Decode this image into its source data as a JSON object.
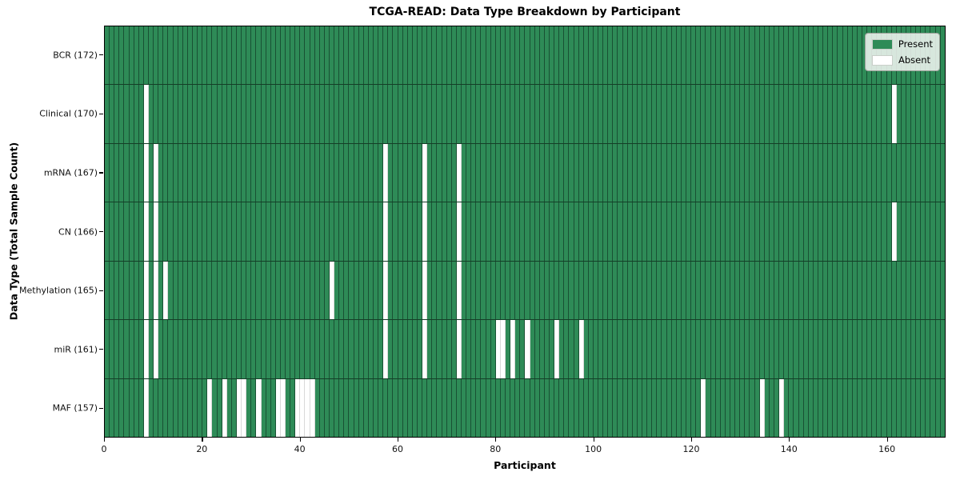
{
  "chart_data": {
    "type": "heatmap",
    "title": "TCGA-READ: Data Type Breakdown by Participant",
    "xlabel": "Participant",
    "ylabel": "Data Type (Total Sample Count)",
    "n_participants": 172,
    "x_ticks": [
      0,
      20,
      40,
      60,
      80,
      100,
      120,
      140,
      160
    ],
    "grid": true,
    "colors": {
      "present": "#2e8b57",
      "absent": "#ffffff"
    },
    "legend": {
      "position": "upper right",
      "entries": [
        {
          "label": "Present",
          "color": "#2e8b57"
        },
        {
          "label": "Absent",
          "color": "#ffffff"
        }
      ]
    },
    "rows": [
      {
        "data_type": "BCR",
        "count": 172,
        "label": "BCR (172)",
        "absent_participants": []
      },
      {
        "data_type": "Clinical",
        "count": 170,
        "label": "Clinical (170)",
        "absent_participants": [
          8,
          161
        ]
      },
      {
        "data_type": "mRNA",
        "count": 167,
        "label": "mRNA (167)",
        "absent_participants": [
          8,
          10,
          57,
          65,
          72
        ]
      },
      {
        "data_type": "CN",
        "count": 166,
        "label": "CN (166)",
        "absent_participants": [
          8,
          10,
          57,
          65,
          72,
          161
        ]
      },
      {
        "data_type": "Methylation",
        "count": 165,
        "label": "Methylation (165)",
        "absent_participants": [
          8,
          10,
          12,
          46,
          57,
          65,
          72
        ]
      },
      {
        "data_type": "miR",
        "count": 161,
        "label": "miR (161)",
        "absent_participants": [
          8,
          10,
          57,
          65,
          72,
          80,
          81,
          83,
          86,
          92,
          97
        ]
      },
      {
        "data_type": "MAF",
        "count": 157,
        "label": "MAF (157)",
        "absent_participants": [
          8,
          21,
          24,
          27,
          28,
          31,
          35,
          36,
          39,
          40,
          41,
          42,
          122,
          134,
          138
        ]
      }
    ]
  }
}
